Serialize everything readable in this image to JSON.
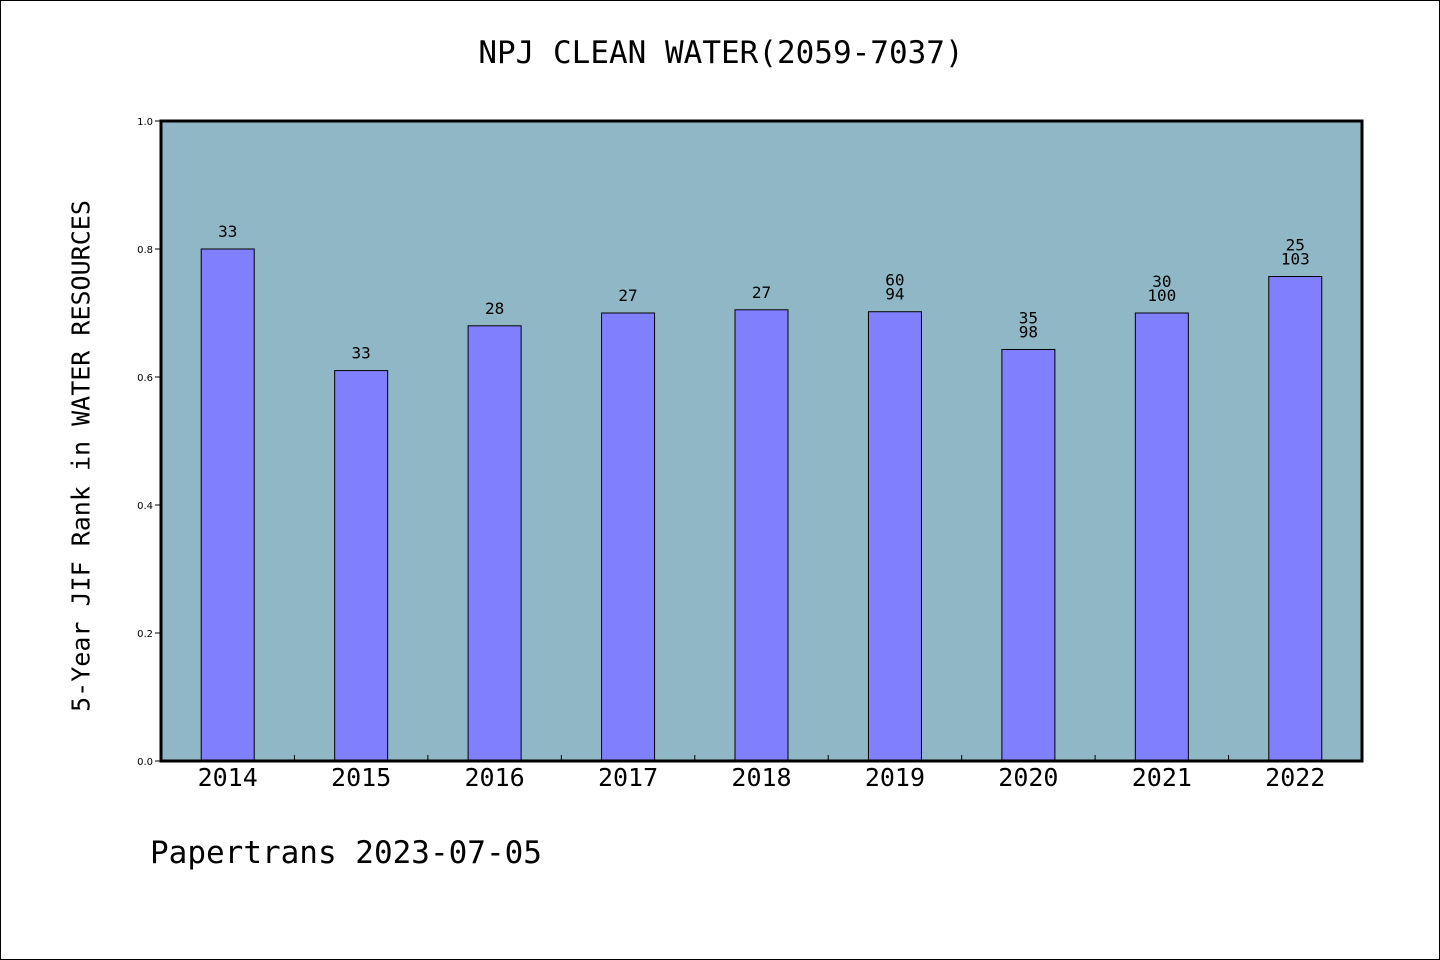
{
  "title": "NPJ CLEAN WATER(2059-7037)",
  "footer": "Papertrans 2023-07-05",
  "colors": {
    "plot_background": "#8fb7c5",
    "bar_fill": "#8080ff",
    "axis": "#000000"
  },
  "chart_data": {
    "type": "bar",
    "title": "NPJ CLEAN WATER(2059-7037)",
    "ylabel": "5-Year JIF Rank in WATER RESOURCES",
    "xlabel": "",
    "ylim": [
      0.0,
      1.0
    ],
    "yticks": [
      "0.0",
      "0.2",
      "0.4",
      "0.6",
      "0.8",
      "1.0"
    ],
    "categories": [
      "2014",
      "2015",
      "2016",
      "2017",
      "2018",
      "2019",
      "2020",
      "2021",
      "2022"
    ],
    "values": [
      0.8,
      0.61,
      0.68,
      0.7,
      0.705,
      0.702,
      0.643,
      0.7,
      0.757
    ],
    "annotations": [
      [
        "33"
      ],
      [
        "33"
      ],
      [
        "28"
      ],
      [
        "27"
      ],
      [
        "27"
      ],
      [
        "60",
        "94"
      ],
      [
        "35",
        "98"
      ],
      [
        "30",
        "100"
      ],
      [
        "25",
        "103"
      ]
    ],
    "grid": false,
    "legend": "none"
  }
}
